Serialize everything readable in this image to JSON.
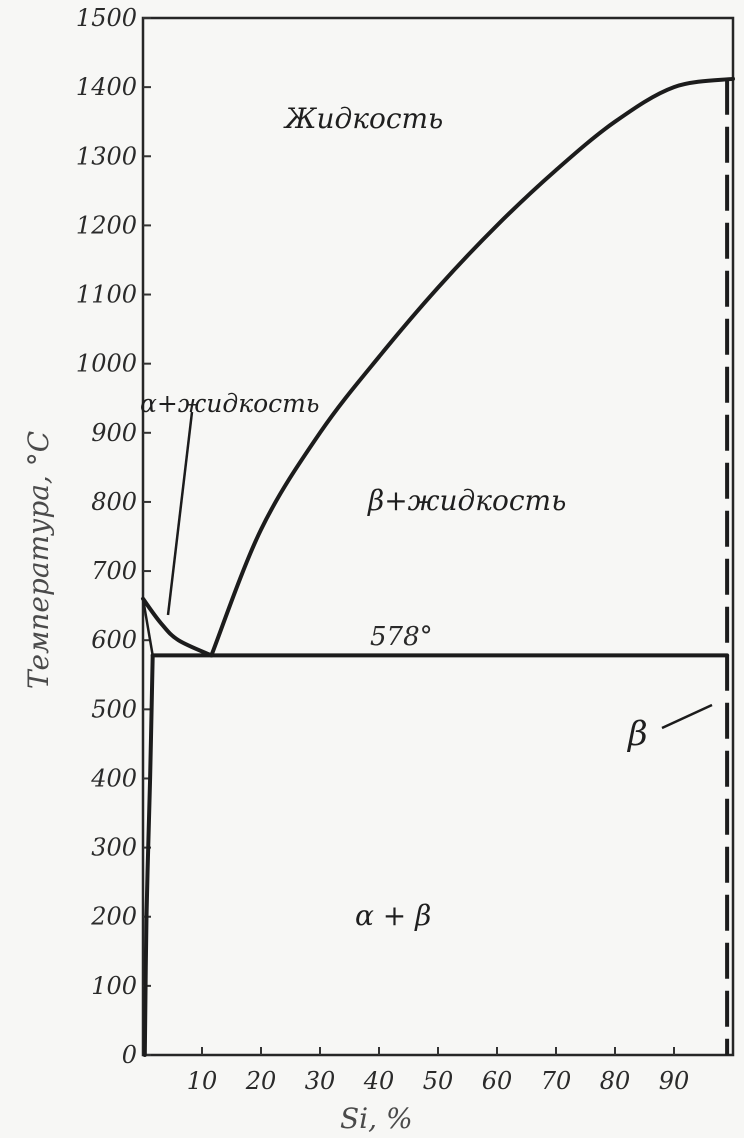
{
  "chart_data": {
    "type": "phase-diagram",
    "xlabel": "Si, %",
    "ylabel": "Температура, °С",
    "x_ticks": [
      "10",
      "20",
      "30",
      "40",
      "50",
      "60",
      "70",
      "80",
      "90"
    ],
    "y_ticks": [
      "0",
      "100",
      "200",
      "300",
      "400",
      "500",
      "600",
      "700",
      "800",
      "900",
      "1000",
      "1100",
      "1200",
      "1300",
      "1400",
      "1500"
    ],
    "xlim": [
      0,
      100
    ],
    "ylim": [
      0,
      1500
    ],
    "eutectic_temperature_label": "578°",
    "eutectic": {
      "si_percent": 11.6,
      "temperature": 578
    },
    "regions": {
      "liquid": "Жидкость",
      "alpha_liquid": "α+жидкость",
      "beta_liquid": "β+жидкость",
      "alpha_beta": "α + β",
      "beta": "β"
    },
    "curves": {
      "liquidus_alpha": [
        [
          0,
          660
        ],
        [
          3,
          625
        ],
        [
          6,
          600
        ],
        [
          11.6,
          578
        ]
      ],
      "liquidus_beta": [
        [
          11.6,
          578
        ],
        [
          20,
          760
        ],
        [
          30,
          900
        ],
        [
          40,
          1010
        ],
        [
          50,
          1110
        ],
        [
          60,
          1200
        ],
        [
          70,
          1280
        ],
        [
          80,
          1350
        ],
        [
          90,
          1400
        ],
        [
          100,
          1412
        ]
      ],
      "solidus_alpha": [
        [
          0,
          660
        ],
        [
          1.65,
          578
        ]
      ],
      "solvus_alpha": [
        [
          1.65,
          578
        ],
        [
          1.2,
          400
        ],
        [
          0.6,
          200
        ],
        [
          0.3,
          0
        ]
      ],
      "eutectic_line": [
        [
          1.65,
          578
        ],
        [
          99,
          578
        ]
      ],
      "beta_boundary_dashed": [
        [
          99,
          1412
        ],
        [
          99,
          0
        ]
      ]
    }
  }
}
